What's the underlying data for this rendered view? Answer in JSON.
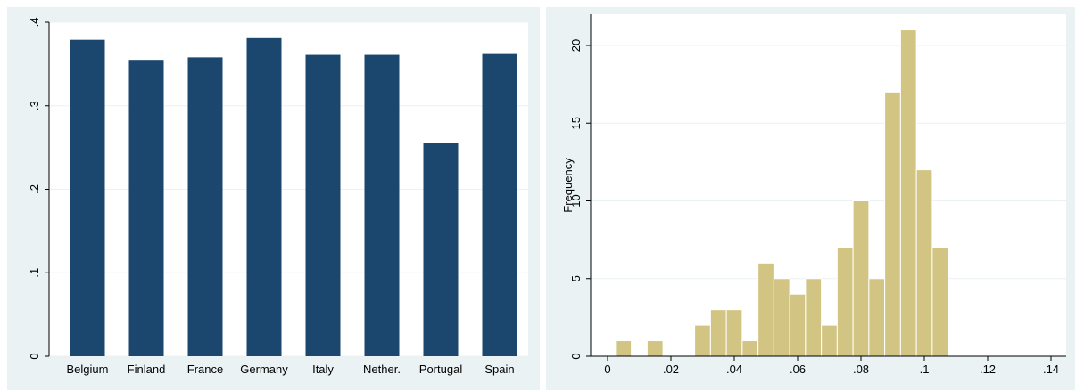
{
  "chart_data": [
    {
      "type": "bar",
      "categories": [
        "Belgium",
        "Finland",
        "France",
        "Germany",
        "Italy",
        "Nether.",
        "Portugal",
        "Spain"
      ],
      "values": [
        0.379,
        0.355,
        0.358,
        0.381,
        0.361,
        0.361,
        0.256,
        0.362
      ],
      "ylim": [
        0,
        0.4
      ],
      "yticks": [
        {
          "value": 0,
          "label": "0"
        },
        {
          "value": 0.1,
          "label": ".1"
        },
        {
          "value": 0.2,
          "label": ".2"
        },
        {
          "value": 0.3,
          "label": ".3"
        },
        {
          "value": 0.4,
          "label": ".4"
        }
      ],
      "grid": true,
      "colors": {
        "bar": "#1b466e",
        "plot_bg": "#ffffff",
        "panel_bg": "#eaf2f3",
        "grid": "#eaf2f3"
      }
    },
    {
      "type": "bar",
      "subtype": "histogram",
      "ylabel": "Frequency",
      "bin_width": 0.005,
      "bins": [
        {
          "start": 0.0025,
          "count": 1
        },
        {
          "start": 0.0075,
          "count": 0
        },
        {
          "start": 0.0125,
          "count": 1
        },
        {
          "start": 0.0175,
          "count": 0
        },
        {
          "start": 0.0225,
          "count": 0
        },
        {
          "start": 0.0275,
          "count": 2
        },
        {
          "start": 0.0325,
          "count": 3
        },
        {
          "start": 0.0375,
          "count": 3
        },
        {
          "start": 0.0425,
          "count": 1
        },
        {
          "start": 0.0475,
          "count": 6
        },
        {
          "start": 0.0525,
          "count": 5
        },
        {
          "start": 0.0575,
          "count": 4
        },
        {
          "start": 0.0625,
          "count": 5
        },
        {
          "start": 0.0675,
          "count": 2
        },
        {
          "start": 0.0725,
          "count": 7
        },
        {
          "start": 0.0775,
          "count": 10
        },
        {
          "start": 0.0825,
          "count": 5
        },
        {
          "start": 0.0875,
          "count": 17
        },
        {
          "start": 0.0925,
          "count": 21
        },
        {
          "start": 0.0975,
          "count": 12
        },
        {
          "start": 0.1025,
          "count": 7
        }
      ],
      "xlim": [
        0,
        0.14
      ],
      "ylim": [
        0,
        22
      ],
      "xticks": [
        {
          "value": 0,
          "label": "0"
        },
        {
          "value": 0.02,
          "label": ".02"
        },
        {
          "value": 0.04,
          "label": ".04"
        },
        {
          "value": 0.06,
          "label": ".06"
        },
        {
          "value": 0.08,
          "label": ".08"
        },
        {
          "value": 0.1,
          "label": ".1"
        },
        {
          "value": 0.12,
          "label": ".12"
        },
        {
          "value": 0.14,
          "label": ".14"
        }
      ],
      "yticks": [
        {
          "value": 0,
          "label": "0"
        },
        {
          "value": 5,
          "label": "5"
        },
        {
          "value": 10,
          "label": "10"
        },
        {
          "value": 15,
          "label": "15"
        },
        {
          "value": 20,
          "label": "20"
        }
      ],
      "grid": true,
      "colors": {
        "bar": "#d2c583",
        "bar_edge": "#ffffff",
        "plot_bg": "#ffffff",
        "panel_bg": "#eaf2f3",
        "grid": "#eaf2f3"
      }
    }
  ]
}
